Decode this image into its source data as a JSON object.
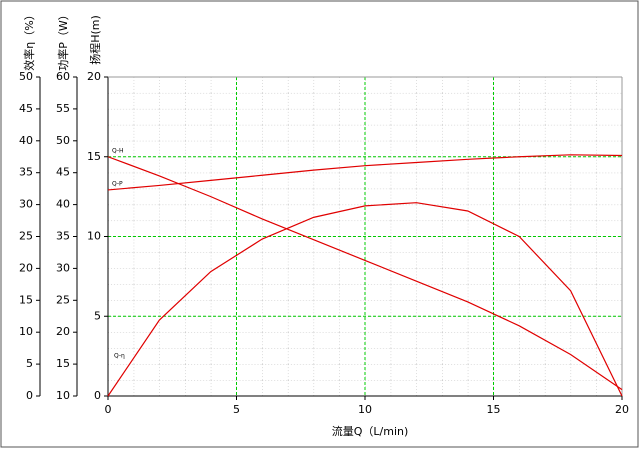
{
  "chart_data": {
    "type": "line",
    "x_label": "流量Q（L/min)",
    "y_label": "扬程H(m)",
    "y2_label": "功率P（W）",
    "y3_label": "效率η（%）",
    "x": [
      0,
      2,
      4,
      6,
      8,
      10,
      12,
      14,
      16,
      18,
      20
    ],
    "xlim": [
      0,
      20
    ],
    "xticks": [
      0,
      5,
      10,
      15,
      20
    ],
    "ylim": [
      0,
      20
    ],
    "yticks": [
      0,
      5,
      10,
      15,
      20
    ],
    "y2lim": [
      10,
      60
    ],
    "y2ticks": [
      10,
      15,
      20,
      25,
      30,
      35,
      40,
      45,
      50,
      55,
      60
    ],
    "y3lim": [
      0,
      50
    ],
    "y3ticks": [
      0,
      5,
      10,
      15,
      20,
      25,
      30,
      35,
      40,
      45,
      50
    ],
    "grid": true,
    "grid_color": "#00cc00",
    "series": [
      {
        "name": "Q-H",
        "color": "#e00000",
        "axis": "y",
        "values": [
          15.0,
          13.8,
          12.5,
          11.1,
          9.8,
          8.5,
          7.2,
          5.9,
          4.4,
          2.6,
          0.4
        ]
      },
      {
        "name": "Q-P",
        "color": "#e00000",
        "axis": "y2",
        "values": [
          42.3,
          43.0,
          43.8,
          44.6,
          45.4,
          46.1,
          46.6,
          47.1,
          47.5,
          47.8,
          47.7
        ]
      },
      {
        "name": "Q-η",
        "color": "#e00000",
        "axis": "y3",
        "values": [
          0,
          11.9,
          19.5,
          24.6,
          28.0,
          29.8,
          30.3,
          29.0,
          25.0,
          16.5,
          0
        ]
      }
    ]
  }
}
